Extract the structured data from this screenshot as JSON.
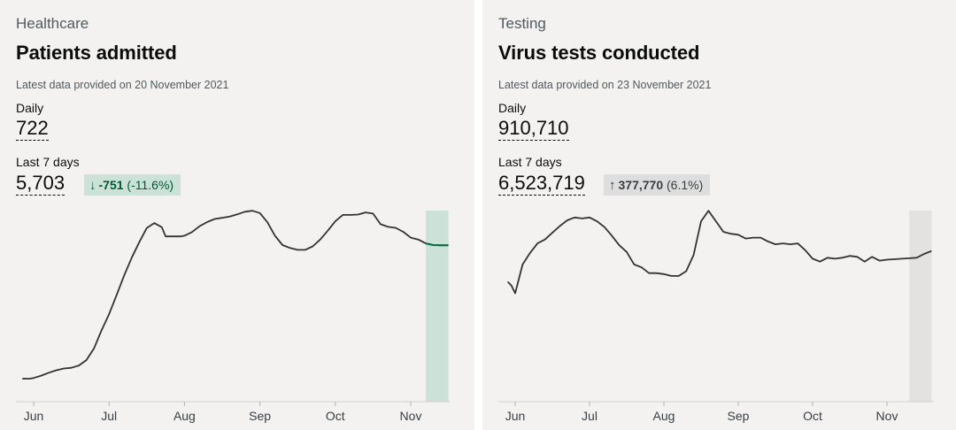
{
  "panels": [
    {
      "category": "Healthcare",
      "title": "Patients admitted",
      "updated": "Latest data provided on 20 November 2021",
      "daily_label": "Daily",
      "daily_value": "722",
      "week_label": "Last 7 days",
      "week_value": "5,703",
      "change": {
        "direction": "down",
        "arrow": "↓",
        "value": "-751",
        "percent": "(-11.6%)"
      }
    },
    {
      "category": "Testing",
      "title": "Virus tests conducted",
      "updated": "Latest data provided on 23 November 2021",
      "daily_label": "Daily",
      "daily_value": "910,710",
      "week_label": "Last 7 days",
      "week_value": "6,523,719",
      "change": {
        "direction": "up",
        "arrow": "↑",
        "value": "377,770",
        "percent": "(6.1%)"
      }
    }
  ],
  "colors": {
    "line": "#333333",
    "highlight_down": "#00703c",
    "shade_down": "#cce2d8",
    "shade_up": "#e3e2e0"
  },
  "chart_data": [
    {
      "type": "line",
      "title": "Patients admitted",
      "tick_labels": [
        "Jun",
        "Jul",
        "Aug",
        "Sep",
        "Oct",
        "Nov"
      ],
      "ylim": [
        0,
        1000
      ],
      "highlight_from": 5.2,
      "series": [
        {
          "x": [
            -0.15,
            -0.05,
            0,
            0.1,
            0.2,
            0.3,
            0.4,
            0.5,
            0.6,
            0.7,
            0.8,
            0.9,
            1.0,
            1.1,
            1.2,
            1.3,
            1.4,
            1.5,
            1.6,
            1.7,
            1.75,
            1.85,
            1.95,
            2.0,
            2.1,
            2.2,
            2.3,
            2.4,
            2.5,
            2.6,
            2.7,
            2.8,
            2.9,
            3.0,
            3.1,
            3.2,
            3.3,
            3.4,
            3.5,
            3.6,
            3.7,
            3.8,
            3.9,
            4.0,
            4.1,
            4.2,
            4.3,
            4.4,
            4.5,
            4.6,
            4.7,
            4.8,
            4.9,
            5.0,
            5.1,
            5.2,
            5.3,
            5.4,
            5.5
          ],
          "y": [
            115,
            115,
            119,
            131,
            146,
            159,
            168,
            172,
            184,
            212,
            273,
            367,
            451,
            550,
            652,
            745,
            826,
            900,
            926,
            904,
            856,
            856,
            856,
            860,
            879,
            909,
            931,
            947,
            953,
            960,
            971,
            985,
            990,
            978,
            930,
            860,
            811,
            796,
            786,
            786,
            804,
            840,
            886,
            935,
            968,
            968,
            970,
            981,
            975,
            920,
            906,
            901,
            880,
            850,
            840,
            820,
            811,
            810,
            810
          ]
        }
      ]
    },
    {
      "type": "line",
      "title": "Virus tests conducted",
      "tick_labels": [
        "Jun",
        "Jul",
        "Aug",
        "Sep",
        "Oct",
        "Nov"
      ],
      "ylim": [
        0,
        2000000
      ],
      "highlight_from": 5.3,
      "series": [
        {
          "x": [
            -0.1,
            -0.05,
            0,
            0.1,
            0.2,
            0.3,
            0.4,
            0.5,
            0.6,
            0.7,
            0.8,
            0.9,
            1.0,
            1.1,
            1.2,
            1.3,
            1.4,
            1.5,
            1.6,
            1.7,
            1.8,
            1.9,
            2.0,
            2.1,
            2.2,
            2.3,
            2.4,
            2.5,
            2.6,
            2.7,
            2.8,
            2.9,
            3.0,
            3.1,
            3.2,
            3.3,
            3.4,
            3.5,
            3.6,
            3.7,
            3.8,
            3.9,
            4.0,
            4.1,
            4.2,
            4.3,
            4.4,
            4.5,
            4.6,
            4.7,
            4.8,
            4.9,
            5.0,
            5.1,
            5.2,
            5.3,
            5.4,
            5.5,
            5.6
          ],
          "y": [
            1240000,
            1200000,
            1120000,
            1420000,
            1540000,
            1640000,
            1680000,
            1750000,
            1820000,
            1880000,
            1910000,
            1900000,
            1910000,
            1870000,
            1810000,
            1720000,
            1620000,
            1550000,
            1420000,
            1390000,
            1330000,
            1330000,
            1320000,
            1300000,
            1300000,
            1350000,
            1520000,
            1870000,
            1980000,
            1870000,
            1760000,
            1740000,
            1730000,
            1690000,
            1700000,
            1700000,
            1660000,
            1630000,
            1640000,
            1630000,
            1640000,
            1570000,
            1480000,
            1450000,
            1490000,
            1480000,
            1490000,
            1510000,
            1500000,
            1450000,
            1500000,
            1460000,
            1470000,
            1475000,
            1480000,
            1485000,
            1490000,
            1530000,
            1560000
          ]
        }
      ]
    }
  ]
}
